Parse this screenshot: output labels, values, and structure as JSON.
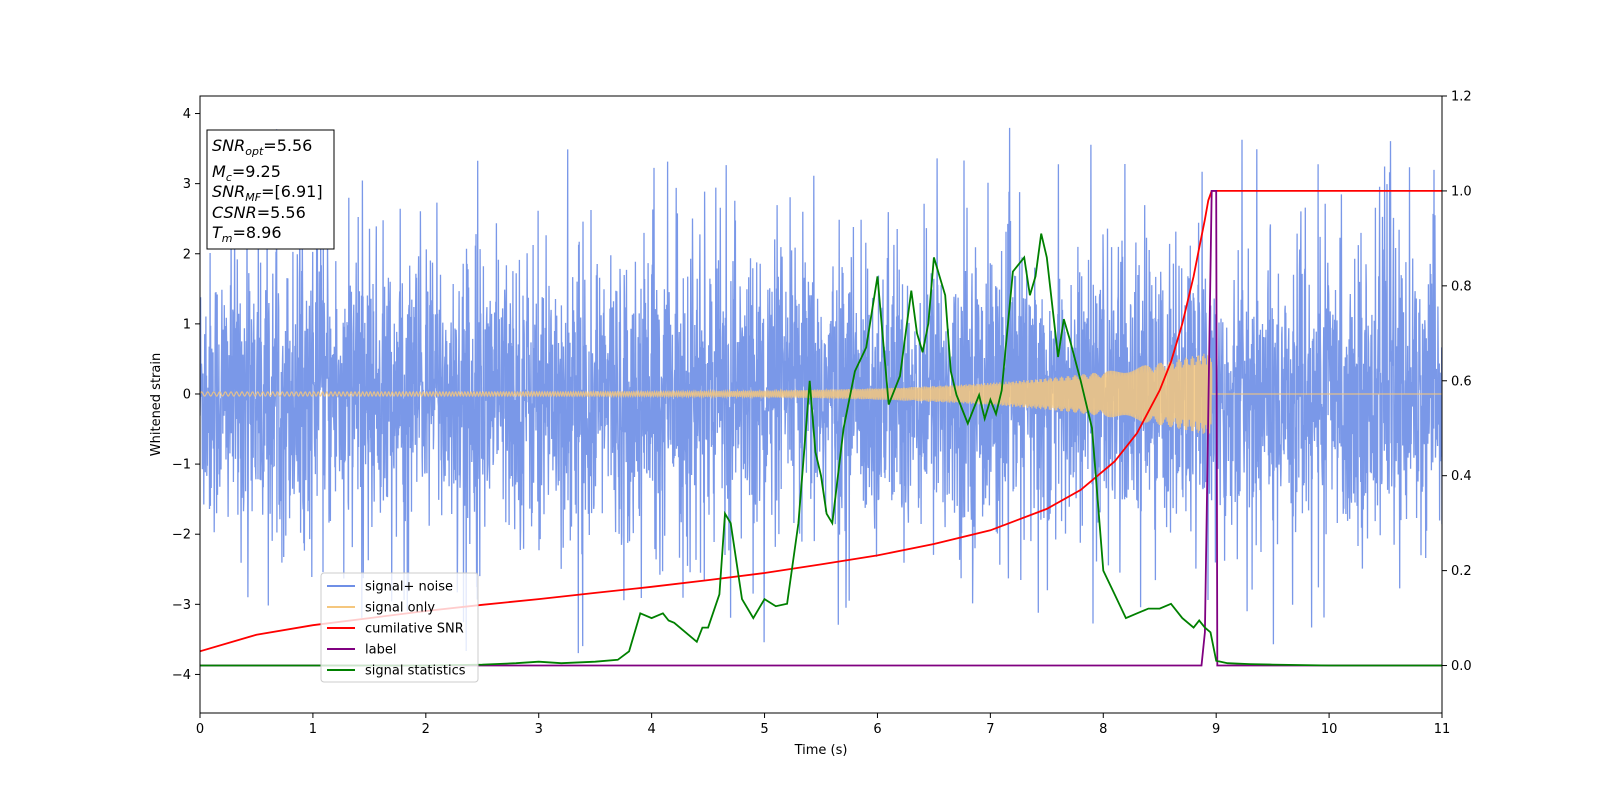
{
  "chart_data": {
    "type": "line",
    "x_axis": {
      "label": "Time (s)",
      "range": [
        0,
        11
      ],
      "ticks": [
        0,
        1,
        2,
        3,
        4,
        5,
        6,
        7,
        8,
        9,
        10,
        11
      ]
    },
    "y_left": {
      "label": "Whitened strain",
      "range": [
        -4.55,
        4.25
      ],
      "ticks": [
        -4,
        -3,
        -2,
        -1,
        0,
        1,
        2,
        3,
        4
      ]
    },
    "y_right": {
      "label": "",
      "range": [
        -0.1,
        1.2
      ],
      "ticks": [
        "0.0",
        "0.2",
        "0.4",
        "0.6",
        "0.8",
        "1.0",
        "1.2"
      ]
    },
    "grid": false,
    "annotation": {
      "lines": [
        {
          "base": "SNR",
          "sub": "opt",
          "value": "=5.56"
        },
        {
          "base": "M",
          "sub": "c",
          "value": "=9.25"
        },
        {
          "base": "SNR",
          "sub": "MF",
          "value": "=[6.91]"
        },
        {
          "base": "CSNR",
          "sub": "",
          "value": "=5.56"
        },
        {
          "base": "T",
          "sub": "m",
          "value": "=8.96"
        }
      ]
    },
    "legend": {
      "location": "lower-left",
      "entries": [
        {
          "label": "signal+ noise",
          "color": "#6f8fe6"
        },
        {
          "label": "signal only",
          "color": "#f5c77e"
        },
        {
          "label": "cumilative SNR",
          "color": "#ff0000"
        },
        {
          "label": "label",
          "color": "#800080"
        },
        {
          "label": "signal statistics",
          "color": "#008000"
        }
      ]
    },
    "series": [
      {
        "name": "signal+ noise",
        "axis": "left",
        "color": "#6f8fe6",
        "kind": "noise",
        "x_range": [
          0,
          11
        ],
        "envelope": 1.6,
        "peak_max": 3.85,
        "peak_min": -4.15
      },
      {
        "name": "signal only",
        "axis": "left",
        "color": "#f5c77e",
        "kind": "chirp",
        "x_range": [
          0,
          8.96
        ],
        "amplitude_start": 0.03,
        "amplitude_end": 0.6
      },
      {
        "name": "cumilative SNR",
        "axis": "right",
        "color": "#ff0000",
        "x": [
          0,
          0.5,
          1,
          1.5,
          2,
          2.5,
          3,
          3.5,
          4,
          4.5,
          5,
          5.5,
          6,
          6.5,
          7,
          7.5,
          7.8,
          8.1,
          8.3,
          8.5,
          8.6,
          8.7,
          8.8,
          8.85,
          8.9,
          8.93,
          8.96,
          9,
          11
        ],
        "y": [
          0.03,
          0.065,
          0.085,
          0.1,
          0.115,
          0.128,
          0.14,
          0.153,
          0.166,
          0.18,
          0.195,
          0.213,
          0.232,
          0.256,
          0.285,
          0.33,
          0.37,
          0.43,
          0.49,
          0.58,
          0.64,
          0.72,
          0.82,
          0.88,
          0.94,
          0.98,
          1.0,
          1.0,
          1.0
        ]
      },
      {
        "name": "label",
        "axis": "right",
        "color": "#800080",
        "x": [
          0,
          8.87,
          8.9,
          8.96,
          9.0,
          9.01,
          11
        ],
        "y": [
          0.0,
          0.0,
          0.07,
          1.0,
          1.0,
          0.0,
          0.0
        ]
      },
      {
        "name": "signal statistics",
        "axis": "right",
        "color": "#008000",
        "x": [
          0,
          1,
          2,
          2.5,
          2.8,
          3,
          3.2,
          3.5,
          3.7,
          3.8,
          3.9,
          4.0,
          4.1,
          4.15,
          4.2,
          4.4,
          4.45,
          4.5,
          4.6,
          4.65,
          4.7,
          4.8,
          4.9,
          5.0,
          5.1,
          5.2,
          5.3,
          5.35,
          5.4,
          5.45,
          5.5,
          5.55,
          5.6,
          5.7,
          5.8,
          5.9,
          6.0,
          6.1,
          6.2,
          6.3,
          6.35,
          6.4,
          6.45,
          6.5,
          6.6,
          6.65,
          6.7,
          6.8,
          6.9,
          6.95,
          7.0,
          7.05,
          7.1,
          7.2,
          7.3,
          7.35,
          7.4,
          7.45,
          7.5,
          7.6,
          7.65,
          7.7,
          7.8,
          7.9,
          8.0,
          8.1,
          8.2,
          8.3,
          8.4,
          8.5,
          8.6,
          8.7,
          8.8,
          8.85,
          8.9,
          8.95,
          9.0,
          9.1,
          9.3,
          9.5,
          10,
          11
        ],
        "y": [
          0.0,
          0.0,
          0.0,
          0.002,
          0.005,
          0.008,
          0.005,
          0.008,
          0.012,
          0.03,
          0.11,
          0.1,
          0.11,
          0.095,
          0.09,
          0.05,
          0.08,
          0.08,
          0.15,
          0.32,
          0.3,
          0.14,
          0.1,
          0.14,
          0.125,
          0.13,
          0.3,
          0.45,
          0.6,
          0.45,
          0.4,
          0.32,
          0.3,
          0.5,
          0.62,
          0.67,
          0.82,
          0.55,
          0.61,
          0.79,
          0.7,
          0.66,
          0.72,
          0.86,
          0.78,
          0.62,
          0.57,
          0.51,
          0.57,
          0.52,
          0.56,
          0.53,
          0.58,
          0.83,
          0.86,
          0.78,
          0.82,
          0.91,
          0.86,
          0.65,
          0.73,
          0.69,
          0.6,
          0.5,
          0.2,
          0.15,
          0.1,
          0.11,
          0.12,
          0.12,
          0.13,
          0.1,
          0.08,
          0.095,
          0.08,
          0.07,
          0.01,
          0.005,
          0.003,
          0.002,
          0.0,
          0.0
        ]
      }
    ]
  }
}
